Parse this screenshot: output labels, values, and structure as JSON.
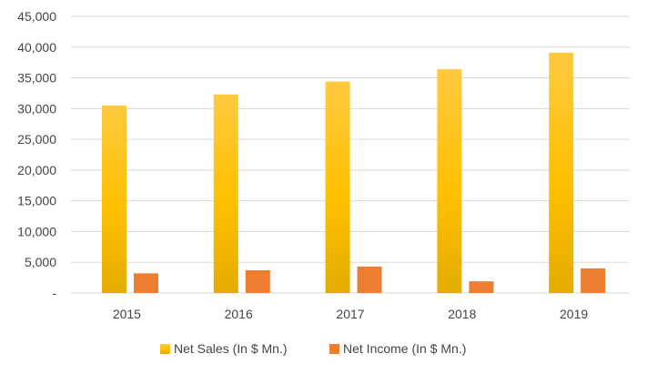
{
  "chart_data": {
    "type": "bar",
    "categories": [
      "2015",
      "2016",
      "2017",
      "2018",
      "2019"
    ],
    "series": [
      {
        "name": "Net Sales (In $ Mn.)",
        "values": [
          30500,
          32300,
          34400,
          36400,
          39100
        ],
        "color": "#FFC000"
      },
      {
        "name": "Net Income (In $ Mn.)",
        "values": [
          3200,
          3700,
          4300,
          1900,
          4000
        ],
        "color": "#ED7D31"
      }
    ],
    "ylim": [
      0,
      45000
    ],
    "y_ticks": [
      0,
      5000,
      10000,
      15000,
      20000,
      25000,
      30000,
      35000,
      40000,
      45000
    ],
    "y_tick_labels": [
      "-",
      "5,000",
      "10,000",
      "15,000",
      "20,000",
      "25,000",
      "30,000",
      "35,000",
      "40,000",
      "45,000"
    ],
    "grid": true,
    "legend_position": "bottom",
    "title": "",
    "xlabel": "",
    "ylabel": ""
  }
}
